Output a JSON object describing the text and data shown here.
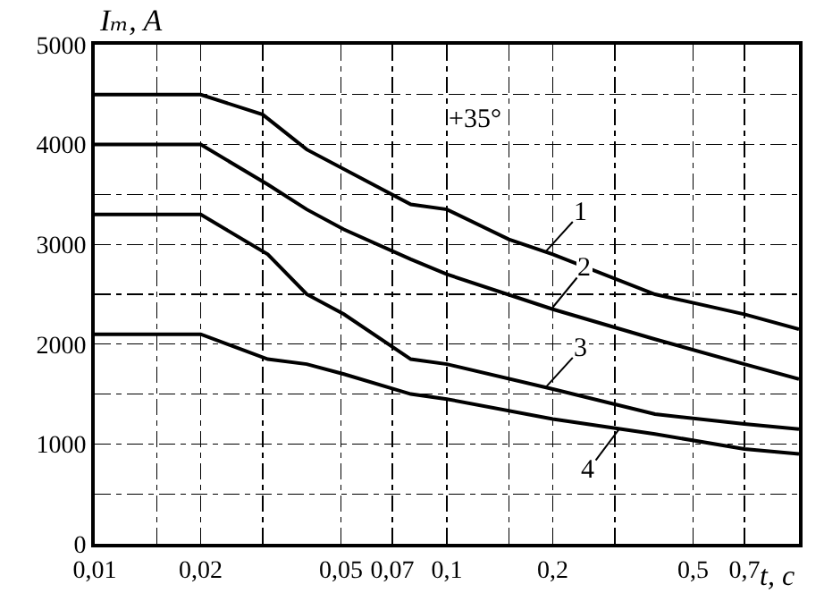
{
  "chart_data": {
    "type": "line",
    "ylabel": "Iₘ, A",
    "xlabel": "t, c",
    "log": "x",
    "grid": true,
    "marker": "none",
    "line_style": "solid",
    "xlim": [
      0.01,
      1
    ],
    "xticks": [
      {
        "value": 0.01,
        "label": "0,01"
      },
      {
        "value": 0.015,
        "label": null
      },
      {
        "value": 0.02,
        "label": "0,02"
      },
      {
        "value": 0.03,
        "label": null
      },
      {
        "value": 0.05,
        "label": "0,05"
      },
      {
        "value": 0.07,
        "label": "0,07"
      },
      {
        "value": 0.1,
        "label": "0,1"
      },
      {
        "value": 0.15,
        "label": null
      },
      {
        "value": 0.2,
        "label": "0,2"
      },
      {
        "value": 0.3,
        "label": null
      },
      {
        "value": 0.5,
        "label": "0,5"
      },
      {
        "value": 0.7,
        "label": "0,7"
      }
    ],
    "ylim": [
      0,
      5000
    ],
    "yticks": [
      0,
      {
        "value": 500,
        "label": null
      },
      1000,
      {
        "value": 1500,
        "label": null
      },
      2000,
      {
        "value": 2500,
        "label": null
      },
      3000,
      {
        "value": 3500,
        "label": null
      },
      4000,
      {
        "value": 4500,
        "label": null
      },
      5000
    ],
    "series": [
      {
        "color": "#000000",
        "x": [
          0.01,
          0.02,
          0.03,
          0.04,
          0.079,
          0.1,
          0.15,
          0.2,
          0.39,
          0.7,
          1
        ],
        "values": [
          4500,
          4500,
          4300,
          3950,
          3400,
          3350,
          3050,
          2900,
          2500,
          2300,
          2150
        ]
      },
      {
        "color": "#000000",
        "x": [
          0.01,
          0.02,
          0.031,
          0.04,
          0.051,
          0.079,
          0.1,
          0.2,
          0.39,
          0.7,
          1
        ],
        "values": [
          4000,
          4000,
          3600,
          3350,
          3150,
          2850,
          2700,
          2350,
          2050,
          1800,
          1650
        ]
      },
      {
        "color": "#000000",
        "x": [
          0.01,
          0.02,
          0.031,
          0.04,
          0.051,
          0.079,
          0.1,
          0.2,
          0.39,
          0.7,
          1
        ],
        "values": [
          3300,
          3300,
          2900,
          2500,
          2300,
          1850,
          1800,
          1550,
          1300,
          1200,
          1150
        ]
      },
      {
        "color": "#000000",
        "x": [
          0.01,
          0.02,
          0.031,
          0.04,
          0.051,
          0.079,
          0.1,
          0.2,
          0.39,
          0.7,
          1
        ],
        "values": [
          2100,
          2100,
          1850,
          1800,
          1700,
          1500,
          1450,
          1250,
          1100,
          950,
          900
        ]
      }
    ],
    "annotations": [
      {
        "text": "+35°",
        "x": 0.12,
        "y": 4250
      },
      {
        "text": "1",
        "x": 0.19,
        "y": 2920
      },
      {
        "text": "2",
        "x": 0.2,
        "y": 2370
      },
      {
        "text": "3",
        "x": 0.19,
        "y": 1560
      },
      {
        "text": "4",
        "x": 0.31,
        "y": 1160
      }
    ]
  }
}
